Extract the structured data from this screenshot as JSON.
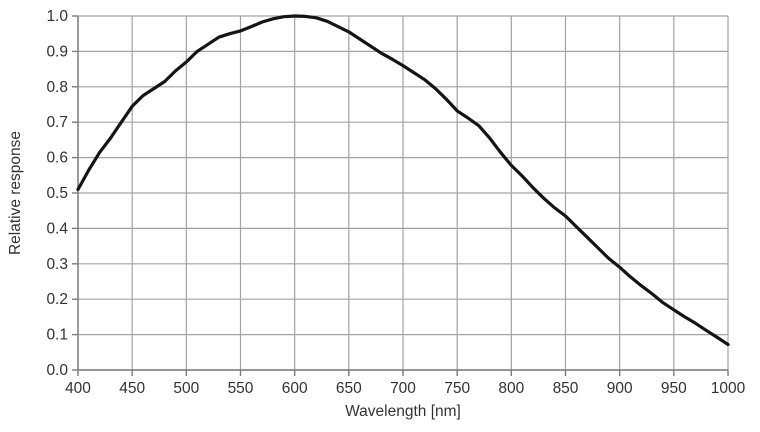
{
  "chart_data": {
    "type": "line",
    "title": "",
    "xlabel": "Wavelength  [nm]",
    "ylabel": "Relative response",
    "xlim": [
      400,
      1000
    ],
    "ylim": [
      0.0,
      1.0
    ],
    "grid": true,
    "legend": "none",
    "x_ticks": [
      400,
      450,
      500,
      550,
      600,
      650,
      700,
      750,
      800,
      850,
      900,
      950,
      1000
    ],
    "y_ticks": [
      0.0,
      0.1,
      0.2,
      0.3,
      0.4,
      0.5,
      0.6,
      0.7,
      0.8,
      0.9,
      1.0
    ],
    "y_tick_labels": [
      "0.0",
      "0.1",
      "0.2",
      "0.3",
      "0.4",
      "0.5",
      "0.6",
      "0.7",
      "0.8",
      "0.9",
      "1.0"
    ],
    "colors": {
      "line": "#141414",
      "grid": "#a3a3a3",
      "axis": "#7a7a7a",
      "text": "#333333",
      "background": "#ffffff"
    },
    "series": [
      {
        "name": "Relative response",
        "x": [
          400,
          410,
          420,
          430,
          440,
          450,
          460,
          470,
          480,
          490,
          500,
          510,
          520,
          530,
          540,
          550,
          560,
          570,
          580,
          590,
          600,
          610,
          620,
          630,
          640,
          650,
          660,
          670,
          680,
          690,
          700,
          710,
          720,
          730,
          740,
          750,
          760,
          770,
          780,
          790,
          800,
          810,
          820,
          830,
          840,
          850,
          860,
          870,
          880,
          890,
          900,
          910,
          920,
          930,
          940,
          950,
          960,
          970,
          980,
          990,
          1000
        ],
        "y": [
          0.51,
          0.565,
          0.615,
          0.655,
          0.7,
          0.745,
          0.775,
          0.795,
          0.815,
          0.845,
          0.87,
          0.9,
          0.92,
          0.94,
          0.95,
          0.958,
          0.97,
          0.983,
          0.992,
          0.998,
          1.0,
          0.999,
          0.995,
          0.985,
          0.97,
          0.955,
          0.935,
          0.915,
          0.895,
          0.878,
          0.86,
          0.84,
          0.82,
          0.795,
          0.765,
          0.732,
          0.712,
          0.69,
          0.655,
          0.615,
          0.578,
          0.548,
          0.515,
          0.485,
          0.458,
          0.435,
          0.405,
          0.375,
          0.345,
          0.315,
          0.29,
          0.263,
          0.238,
          0.215,
          0.19,
          0.17,
          0.15,
          0.132,
          0.112,
          0.092,
          0.072
        ]
      }
    ]
  }
}
